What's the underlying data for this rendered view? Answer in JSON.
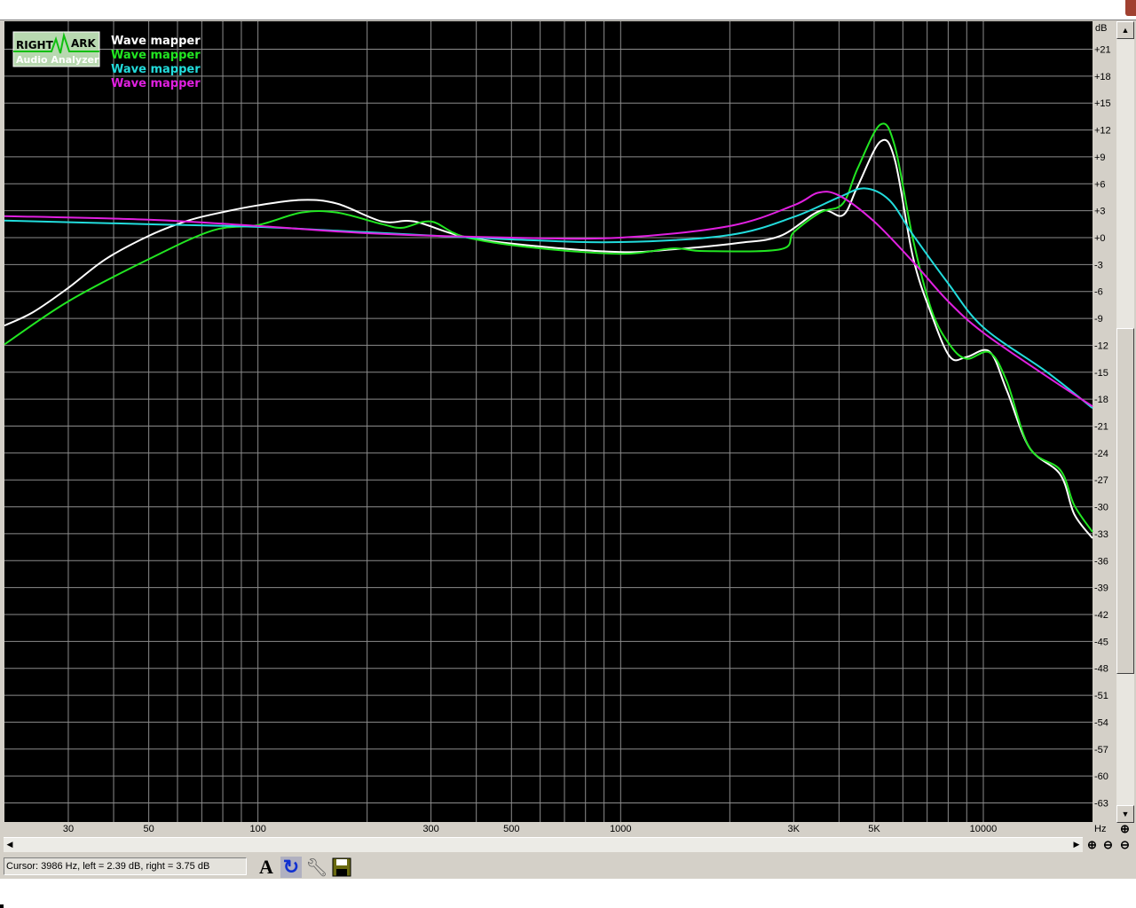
{
  "app": {
    "logo_text_top": "RIGHT MARK",
    "logo_text_bottom": "Audio Analyzer"
  },
  "status": {
    "cursor_text": "Cursor:  3986 Hz,  left = 2.39 dB,  right = 3.75 dB"
  },
  "toolbar": {
    "icons": [
      "font-icon",
      "refresh-icon",
      "settings-wrench-icon",
      "save-icon"
    ]
  },
  "colors": {
    "background": "#000000",
    "grid": "#8c8c8c",
    "panel": "#d4d0c8"
  },
  "chart_data": {
    "type": "line",
    "xscale": "log",
    "xlim": [
      20,
      20000
    ],
    "ylim": [
      -65,
      24
    ],
    "xunit": "Hz",
    "yunit": "dB",
    "grid": true,
    "legend_placement": "top-left",
    "xticks": [
      {
        "v": 30,
        "l": "30"
      },
      {
        "v": 50,
        "l": "50"
      },
      {
        "v": 100,
        "l": "100"
      },
      {
        "v": 300,
        "l": "300"
      },
      {
        "v": 500,
        "l": "500"
      },
      {
        "v": 1000,
        "l": "1000"
      },
      {
        "v": 3000,
        "l": "3K"
      },
      {
        "v": 5000,
        "l": "5K"
      },
      {
        "v": 10000,
        "l": "10000"
      }
    ],
    "yticks": [
      21,
      18,
      15,
      12,
      9,
      6,
      3,
      0,
      -3,
      -6,
      -9,
      -12,
      -15,
      -18,
      -21,
      -24,
      -27,
      -30,
      -33,
      -36,
      -39,
      -42,
      -45,
      -48,
      -51,
      -54,
      -57,
      -60,
      -63
    ],
    "ytick_labels": [
      "+21",
      "+18",
      "+15",
      "+12",
      "+9",
      "+6",
      "+3",
      "+0",
      "-3",
      "-6",
      "-9",
      "-12",
      "-15",
      "-18",
      "-21",
      "-24",
      "-27",
      "-30",
      "-33",
      "-36",
      "-39",
      "-42",
      "-45",
      "-48",
      "-51",
      "-54",
      "-57",
      "-60",
      "-63"
    ],
    "series": [
      {
        "name": "Wave mapper",
        "color": "#ffffff",
        "x": [
          20,
          24,
          30,
          38,
          50,
          63,
          75,
          100,
          132,
          165,
          220,
          270,
          370,
          570,
          1000,
          1400,
          2100,
          2760,
          3550,
          4100,
          4500,
          5200,
          5700,
          6400,
          7200,
          8100,
          9000,
          10400,
          11600,
          13400,
          16300,
          17800,
          20000
        ],
        "y": [
          -9.8,
          -8.3,
          -5.6,
          -2.4,
          0.2,
          1.8,
          2.6,
          3.6,
          4.2,
          3.8,
          1.8,
          1.8,
          0.1,
          -0.9,
          -1.6,
          -1.3,
          -0.6,
          0.2,
          3.0,
          2.5,
          5.7,
          10.7,
          8.7,
          -2.2,
          -8.6,
          -13.3,
          -13.3,
          -12.7,
          -17,
          -23.4,
          -26.4,
          -30.8,
          -33.5
        ]
      },
      {
        "name": "Wave mapper",
        "color": "#22e622",
        "x": [
          20,
          30,
          50,
          75,
          100,
          132,
          165,
          220,
          250,
          300,
          370,
          570,
          1000,
          1400,
          1700,
          2760,
          3000,
          3550,
          4100,
          4500,
          5200,
          5700,
          6400,
          7200,
          8100,
          9000,
          10400,
          11600,
          13400,
          16300,
          17800,
          20000
        ],
        "y": [
          -11.9,
          -7.1,
          -2.4,
          0.8,
          1.4,
          2.8,
          2.8,
          1.5,
          1.1,
          1.8,
          0.1,
          -1.1,
          -1.8,
          -1.2,
          -1.5,
          -1.3,
          0.6,
          2.8,
          3.8,
          7.7,
          12.6,
          10.2,
          -0.2,
          -8.1,
          -12,
          -13.5,
          -12.8,
          -16,
          -23.4,
          -25.9,
          -29.8,
          -32.8
        ]
      },
      {
        "name": "Wave mapper",
        "color": "#22dcdc",
        "x": [
          20,
          50,
          100,
          200,
          500,
          1000,
          2000,
          3000,
          4000,
          4700,
          5500,
          6400,
          8000,
          10000,
          15000,
          20000
        ],
        "y": [
          1.9,
          1.5,
          1.2,
          0.6,
          -0.2,
          -0.5,
          0.3,
          2.3,
          4.5,
          5.5,
          4.2,
          0.3,
          -5.1,
          -10,
          -15,
          -19
        ]
      },
      {
        "name": "Wave mapper",
        "color": "#e020e0",
        "x": [
          20,
          50,
          100,
          200,
          500,
          1000,
          2000,
          3000,
          3500,
          4000,
          5000,
          6400,
          8000,
          10000,
          15000,
          20000
        ],
        "y": [
          2.4,
          2.0,
          1.3,
          0.5,
          0,
          0,
          1.3,
          3.6,
          5.0,
          4.7,
          1.8,
          -2.7,
          -7.1,
          -10.6,
          -15.5,
          -18.8
        ]
      }
    ]
  }
}
